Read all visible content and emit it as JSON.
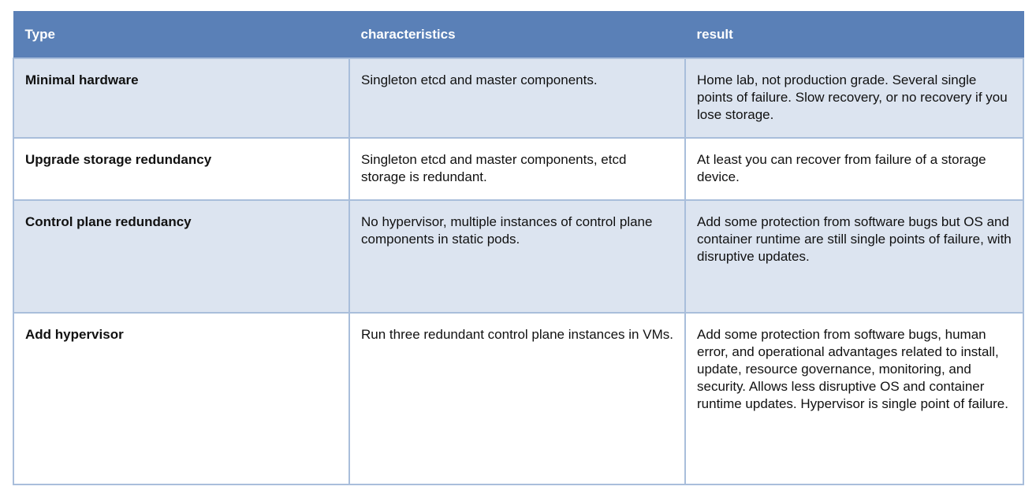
{
  "table": {
    "headers": [
      "Type",
      "characteristics",
      "result"
    ],
    "rows": [
      {
        "type": "Minimal hardware",
        "characteristics": "Singleton etcd and master components.",
        "result": "Home lab, not production grade. Several single points of failure. Slow recovery, or no recovery if you lose storage."
      },
      {
        "type": "Upgrade storage redundancy",
        "characteristics": "Singleton etcd and master components, etcd storage is redundant.",
        "result": "At least you can recover from failure of a storage device."
      },
      {
        "type": "Control plane redundancy",
        "characteristics": "No hypervisor, multiple instances of control plane components in static pods.",
        "result": "Add some protection from software bugs but OS and container runtime are still single points of failure, with disruptive updates."
      },
      {
        "type": "Add hypervisor",
        "characteristics": "Run three redundant control plane instances in VMs.",
        "result": "Add some protection from software bugs, human error, and operational advantages related to install, update, resource governance, monitoring, and security. Allows less disruptive OS and container runtime updates. Hypervisor is single point of failure."
      }
    ]
  },
  "colors": {
    "header_bg": "#5a80b7",
    "row_alt_bg": "#dce4f0",
    "border": "#a9bedb"
  }
}
